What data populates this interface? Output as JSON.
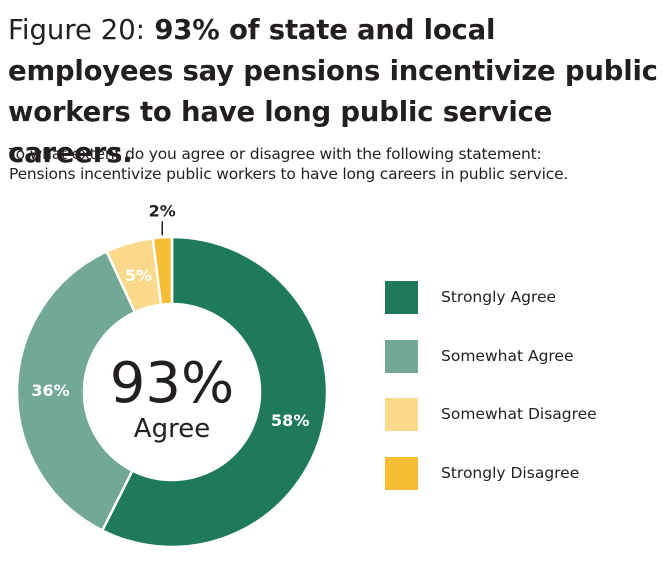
{
  "title_prefix": "Figure 20:",
  "title_main": "93% of state and local employees say pensions incentivize public workers to have long public service careers.",
  "question_line1": "To what extent do you agree or disagree with the following statement:",
  "question_line2": "Pensions incentivize public workers to have long careers in public service.",
  "center_value": "93%",
  "center_label": "Agree",
  "colors": {
    "strongly_agree": "#1f7a5c",
    "somewhat_agree": "#72a896",
    "somewhat_disagree": "#fbd98a",
    "strongly_disagree": "#f6bd34",
    "text": "#231f20"
  },
  "chart_data": {
    "type": "pie",
    "subtype": "donut",
    "slices": [
      {
        "name": "Strongly Agree",
        "value": 58,
        "label": "58%",
        "color": "#1f7a5c"
      },
      {
        "name": "Somewhat Agree",
        "value": 36,
        "label": "36%",
        "color": "#72a896"
      },
      {
        "name": "Somewhat Disagree",
        "value": 5,
        "label": "5%",
        "color": "#fbd98a"
      },
      {
        "name": "Strongly Disagree",
        "value": 2,
        "label": "2%",
        "color": "#f6bd34"
      }
    ],
    "legend_position": "right"
  }
}
